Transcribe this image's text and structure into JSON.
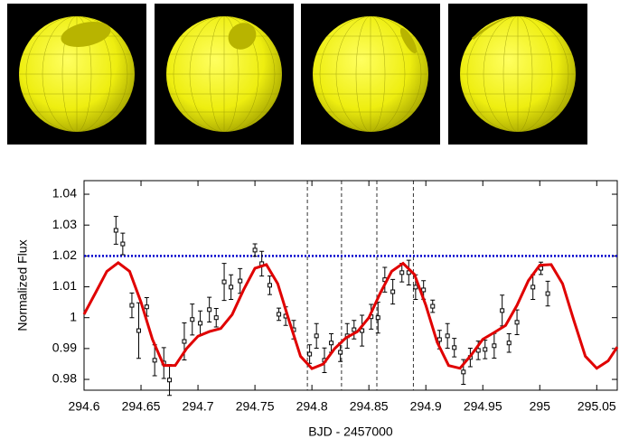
{
  "chart_data": {
    "type": "scatter",
    "xlabel": "BJD - 2457000",
    "ylabel": "Normalized Flux",
    "xlim": [
      294.6,
      295.068
    ],
    "ylim": [
      0.9765,
      1.0444
    ],
    "xticks": [
      294.6,
      294.65,
      294.7,
      294.75,
      294.8,
      294.85,
      294.9,
      294.95,
      295,
      295.05
    ],
    "yticks": [
      0.98,
      0.99,
      1,
      1.01,
      1.02,
      1.03,
      1.04
    ],
    "hline": {
      "value": 1.02,
      "color": "#0000cc"
    },
    "vlines": [
      294.796,
      294.826,
      294.857,
      294.889
    ],
    "series": [
      {
        "type": "errorbar",
        "color": "#000000",
        "x": [
          294.628,
          294.634,
          294.642,
          294.648,
          294.655,
          294.662,
          294.67,
          294.675,
          294.688,
          294.695,
          294.702,
          294.71,
          294.716,
          294.723,
          294.729,
          294.737,
          294.75,
          294.756,
          294.763,
          294.771,
          294.777,
          294.784,
          294.798,
          294.804,
          294.811,
          294.817,
          294.825,
          294.831,
          294.837,
          294.844,
          294.852,
          294.858,
          294.864,
          294.871,
          294.879,
          294.885,
          294.891,
          294.898,
          294.906,
          294.912,
          294.919,
          294.925,
          294.933,
          294.939,
          294.946,
          294.952,
          294.96,
          294.967,
          294.973,
          294.98,
          294.994,
          295.001,
          295.007
        ],
        "values": [
          1.0283,
          1.0239,
          1.004,
          0.9958,
          1.0035,
          0.9862,
          0.9853,
          0.9798,
          0.9923,
          0.9994,
          0.9982,
          1.0026,
          1.0,
          1.0116,
          1.0099,
          1.0119,
          1.0219,
          1.0175,
          1.0105,
          1.0011,
          1.0005,
          0.9961,
          0.9882,
          0.9941,
          0.9862,
          0.9918,
          0.9888,
          0.9941,
          0.9961,
          0.9958,
          1.0003,
          1.0,
          1.0123,
          1.0084,
          1.0146,
          1.0146,
          1.0099,
          1.009,
          1.0037,
          0.9929,
          0.9941,
          0.9903,
          0.9824,
          0.9871,
          0.9894,
          0.9897,
          0.9909,
          1.0023,
          0.9918,
          0.9985,
          1.0099,
          1.016,
          1.0078
        ],
        "errors": [
          0.0045,
          0.0035,
          0.004,
          0.009,
          0.003,
          0.005,
          0.005,
          0.005,
          0.006,
          0.005,
          0.004,
          0.004,
          0.003,
          0.006,
          0.004,
          0.004,
          0.002,
          0.004,
          0.003,
          0.002,
          0.003,
          0.003,
          0.003,
          0.004,
          0.004,
          0.003,
          0.003,
          0.004,
          0.003,
          0.005,
          0.004,
          0.005,
          0.004,
          0.004,
          0.003,
          0.004,
          0.004,
          0.003,
          0.002,
          0.003,
          0.004,
          0.003,
          0.004,
          0.003,
          0.003,
          0.003,
          0.004,
          0.005,
          0.003,
          0.004,
          0.004,
          0.002,
          0.004
        ]
      },
      {
        "type": "line",
        "color": "#e00000",
        "x": [
          294.6,
          294.61,
          294.62,
          294.63,
          294.64,
          294.65,
          294.66,
          294.67,
          294.68,
          294.69,
          294.7,
          294.71,
          294.72,
          294.73,
          294.74,
          294.75,
          294.76,
          294.77,
          294.78,
          294.79,
          294.8,
          294.81,
          294.82,
          294.83,
          294.84,
          294.85,
          294.86,
          294.87,
          294.88,
          294.89,
          294.9,
          294.91,
          294.92,
          294.93,
          294.94,
          294.95,
          294.96,
          294.97,
          294.98,
          294.99,
          295.0,
          295.01,
          295.02,
          295.03,
          295.04,
          295.05,
          295.06,
          295.068
        ],
        "values": [
          1.0011,
          1.008,
          1.015,
          1.0178,
          1.015,
          1.005,
          0.993,
          0.9845,
          0.9845,
          0.99,
          0.994,
          0.9955,
          0.9965,
          1.001,
          1.009,
          1.016,
          1.0172,
          1.011,
          0.999,
          0.9875,
          0.9835,
          0.985,
          0.99,
          0.9935,
          0.9955,
          1.0,
          1.008,
          1.015,
          1.0176,
          1.014,
          1.004,
          0.992,
          0.9845,
          0.9836,
          0.988,
          0.993,
          0.9952,
          0.9975,
          1.004,
          1.012,
          1.017,
          1.0172,
          1.011,
          0.999,
          0.9875,
          0.9836,
          0.986,
          0.9905
        ]
      }
    ]
  }
}
